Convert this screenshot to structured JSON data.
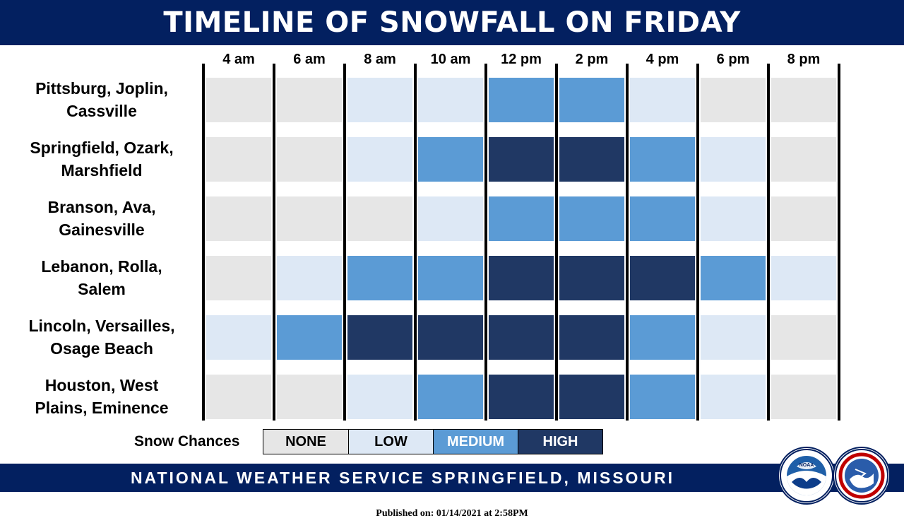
{
  "title": "TIMELINE OF SNOWFALL ON FRIDAY",
  "legend": {
    "label": "Snow Chances",
    "items": [
      {
        "label": "NONE",
        "color": "#e6e6e6",
        "text_color": "#000000"
      },
      {
        "label": "LOW",
        "color": "#dde8f5",
        "text_color": "#000000"
      },
      {
        "label": "MEDIUM",
        "color": "#5b9bd5",
        "text_color": "#ffffff"
      },
      {
        "label": "HIGH",
        "color": "#203864",
        "text_color": "#ffffff"
      }
    ]
  },
  "chart_data": {
    "type": "heatmap",
    "title": "TIMELINE OF SNOWFALL ON FRIDAY",
    "x": [
      "4 am",
      "6 am",
      "8 am",
      "10 am",
      "12 pm",
      "2 pm",
      "4 pm",
      "6 pm",
      "8 pm"
    ],
    "y": [
      "Pittsburg, Joplin, Cassville",
      "Springfield, Ozark, Marshfield",
      "Branson, Ava, Gainesville",
      "Lebanon, Rolla, Salem",
      "Lincoln, Versailles, Osage Beach",
      "Houston, West Plains, Eminence"
    ],
    "y_lines": [
      [
        "Pittsburg, Joplin,",
        "Cassville"
      ],
      [
        "Springfield, Ozark,",
        "Marshfield"
      ],
      [
        "Branson, Ava,",
        "Gainesville"
      ],
      [
        "Lebanon, Rolla,",
        "Salem"
      ],
      [
        "Lincoln, Versailles,",
        "Osage Beach"
      ],
      [
        "Houston, West",
        "Plains, Eminence"
      ]
    ],
    "categories": [
      "NONE",
      "LOW",
      "MEDIUM",
      "HIGH"
    ],
    "values": [
      [
        "NONE",
        "NONE",
        "LOW",
        "LOW",
        "MEDIUM",
        "MEDIUM",
        "LOW",
        "NONE",
        "NONE"
      ],
      [
        "NONE",
        "NONE",
        "LOW",
        "MEDIUM",
        "HIGH",
        "HIGH",
        "MEDIUM",
        "LOW",
        "NONE"
      ],
      [
        "NONE",
        "NONE",
        "NONE",
        "LOW",
        "MEDIUM",
        "MEDIUM",
        "MEDIUM",
        "LOW",
        "NONE"
      ],
      [
        "NONE",
        "LOW",
        "MEDIUM",
        "MEDIUM",
        "HIGH",
        "HIGH",
        "HIGH",
        "MEDIUM",
        "LOW"
      ],
      [
        "LOW",
        "MEDIUM",
        "HIGH",
        "HIGH",
        "HIGH",
        "HIGH",
        "MEDIUM",
        "LOW",
        "NONE"
      ],
      [
        "NONE",
        "NONE",
        "LOW",
        "MEDIUM",
        "HIGH",
        "HIGH",
        "MEDIUM",
        "LOW",
        "NONE"
      ]
    ]
  },
  "footer": {
    "text": "NATIONAL WEATHER SERVICE SPRINGFIELD, MISSOURI",
    "logos": [
      {
        "name": "noaa-logo",
        "text": "NOAA"
      },
      {
        "name": "nws-logo",
        "text": "NATIONAL WEATHER SERVICE"
      }
    ]
  },
  "published": "Published on: 01/14/2021 at 2:58PM",
  "colors": {
    "banner": "#032060",
    "separator": "#000000"
  }
}
